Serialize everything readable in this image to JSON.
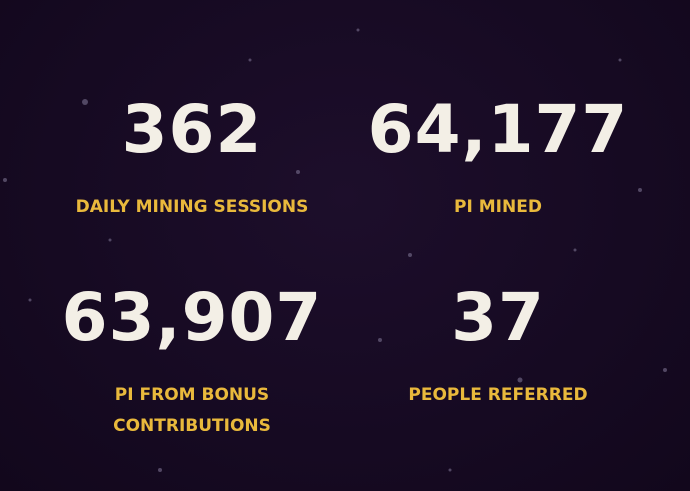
{
  "stats": [
    {
      "value": "362",
      "label": "DAILY MINING SESSIONS"
    },
    {
      "value": "64,177",
      "label": "PI MINED"
    },
    {
      "value": "63,907",
      "label": "PI FROM BONUS CONTRIBUTIONS"
    },
    {
      "value": "37",
      "label": "PEOPLE REFERRED"
    }
  ]
}
